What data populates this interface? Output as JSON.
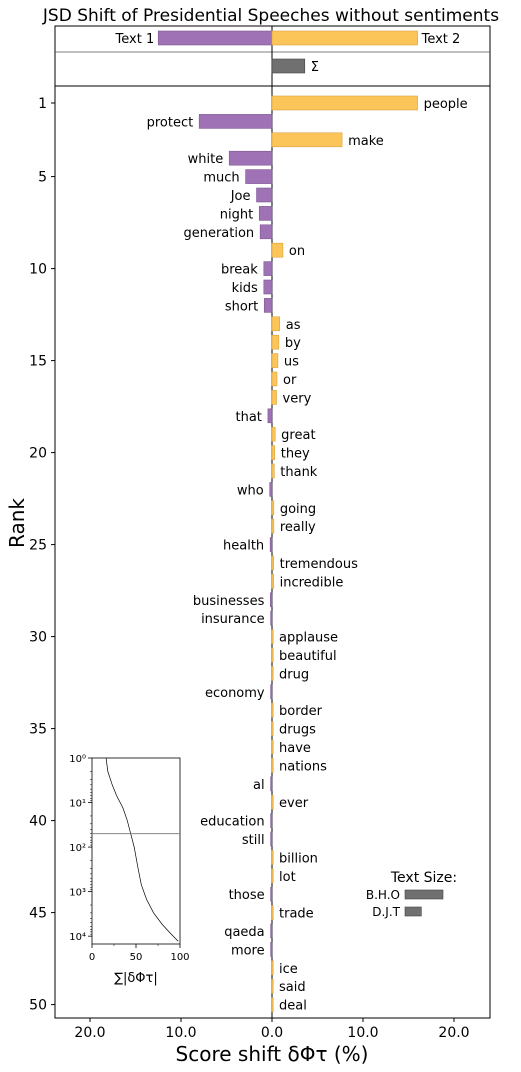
{
  "chart_data": {
    "type": "bar",
    "orientation": "horizontal",
    "title": "JSD Shift of Presidential Speeches without sentiments",
    "xlabel": "Score shift δΦτ (%)",
    "ylabel": "Rank",
    "xlim": [
      -24,
      24
    ],
    "x_ticks": [
      -20,
      -10,
      0,
      10,
      20
    ],
    "x_tick_labels": [
      "20.0",
      "10.0",
      "0.0",
      "10.0",
      "20.0"
    ],
    "y_ticks": [
      1,
      5,
      10,
      15,
      20,
      25,
      30,
      35,
      40,
      45,
      50
    ],
    "colors": {
      "text1": "#9e72b5",
      "text2": "#fcc559",
      "total": "#707070"
    },
    "header": {
      "text1_label": "Text 1",
      "text1_value": -12.5,
      "text2_label": "Text 2",
      "text2_value": 16.0,
      "sum_label": "Σ",
      "sum_value": 3.6
    },
    "words": [
      {
        "rank": 1,
        "word": "people",
        "value": 16.0
      },
      {
        "rank": 2,
        "word": "protect",
        "value": -8.0
      },
      {
        "rank": 3,
        "word": "make",
        "value": 7.7
      },
      {
        "rank": 4,
        "word": "white",
        "value": -4.7
      },
      {
        "rank": 5,
        "word": "much",
        "value": -2.9
      },
      {
        "rank": 6,
        "word": "Joe",
        "value": -1.7
      },
      {
        "rank": 7,
        "word": "night",
        "value": -1.4
      },
      {
        "rank": 8,
        "word": "generation",
        "value": -1.3
      },
      {
        "rank": 9,
        "word": "on",
        "value": 1.2
      },
      {
        "rank": 10,
        "word": "break",
        "value": -0.9
      },
      {
        "rank": 11,
        "word": "kids",
        "value": -0.9
      },
      {
        "rank": 12,
        "word": "short",
        "value": -0.85
      },
      {
        "rank": 13,
        "word": "as",
        "value": 0.85
      },
      {
        "rank": 14,
        "word": "by",
        "value": 0.75
      },
      {
        "rank": 15,
        "word": "us",
        "value": 0.65
      },
      {
        "rank": 16,
        "word": "or",
        "value": 0.55
      },
      {
        "rank": 17,
        "word": "very",
        "value": 0.5
      },
      {
        "rank": 18,
        "word": "that",
        "value": -0.45
      },
      {
        "rank": 19,
        "word": "great",
        "value": 0.35
      },
      {
        "rank": 20,
        "word": "they",
        "value": 0.3
      },
      {
        "rank": 21,
        "word": "thank",
        "value": 0.25
      },
      {
        "rank": 22,
        "word": "who",
        "value": -0.25
      },
      {
        "rank": 23,
        "word": "going",
        "value": 0.2
      },
      {
        "rank": 24,
        "word": "really",
        "value": 0.2
      },
      {
        "rank": 25,
        "word": "health",
        "value": -0.2
      },
      {
        "rank": 26,
        "word": "tremendous",
        "value": 0.18
      },
      {
        "rank": 27,
        "word": "incredible",
        "value": 0.18
      },
      {
        "rank": 28,
        "word": "businesses",
        "value": -0.18
      },
      {
        "rank": 29,
        "word": "insurance",
        "value": -0.15
      },
      {
        "rank": 30,
        "word": "applause",
        "value": 0.1
      },
      {
        "rank": 31,
        "word": "beautiful",
        "value": 0.1
      },
      {
        "rank": 32,
        "word": "drug",
        "value": 0.1
      },
      {
        "rank": 33,
        "word": "economy",
        "value": -0.15
      },
      {
        "rank": 34,
        "word": "border",
        "value": 0.1
      },
      {
        "rank": 35,
        "word": "drugs",
        "value": 0.1
      },
      {
        "rank": 36,
        "word": "have",
        "value": 0.1
      },
      {
        "rank": 37,
        "word": "nations",
        "value": 0.1
      },
      {
        "rank": 38,
        "word": "al",
        "value": -0.15
      },
      {
        "rank": 39,
        "word": "ever",
        "value": 0.1
      },
      {
        "rank": 40,
        "word": "education",
        "value": -0.15
      },
      {
        "rank": 41,
        "word": "still",
        "value": -0.15
      },
      {
        "rank": 42,
        "word": "billion",
        "value": 0.1
      },
      {
        "rank": 43,
        "word": "lot",
        "value": 0.1
      },
      {
        "rank": 44,
        "word": "those",
        "value": -0.15
      },
      {
        "rank": 45,
        "word": "trade",
        "value": 0.1
      },
      {
        "rank": 46,
        "word": "qaeda",
        "value": -0.15
      },
      {
        "rank": 47,
        "word": "more",
        "value": -0.15
      },
      {
        "rank": 48,
        "word": "ice",
        "value": 0.1
      },
      {
        "rank": 49,
        "word": "said",
        "value": 0.1
      },
      {
        "rank": 50,
        "word": "deal",
        "value": 0.1
      }
    ],
    "inset": {
      "type": "line",
      "xlabel": "∑|δΦτ|",
      "xlim": [
        0,
        100
      ],
      "x_ticks": [
        0,
        50,
        100
      ],
      "y_scale": "log",
      "ylim": [
        1,
        15000
      ],
      "y_ticks": [
        1,
        10,
        100,
        1000,
        10000
      ],
      "y_tick_labels": [
        "10⁰",
        "10¹",
        "10²",
        "10³",
        "10⁴"
      ],
      "hline_rank": 50,
      "curve": [
        [
          16,
          1
        ],
        [
          18,
          2
        ],
        [
          23,
          4
        ],
        [
          28,
          7
        ],
        [
          35,
          13
        ],
        [
          40,
          25
        ],
        [
          44,
          50
        ],
        [
          48,
          100
        ],
        [
          52,
          280
        ],
        [
          56,
          700
        ],
        [
          62,
          1500
        ],
        [
          70,
          3000
        ],
        [
          80,
          5500
        ],
        [
          90,
          9000
        ],
        [
          98,
          13000
        ]
      ]
    },
    "text_size_legend": {
      "title": "Text Size:",
      "items": [
        {
          "label": "B.H.O",
          "size": 1.0
        },
        {
          "label": "D.J.T",
          "size": 0.43
        }
      ]
    }
  }
}
